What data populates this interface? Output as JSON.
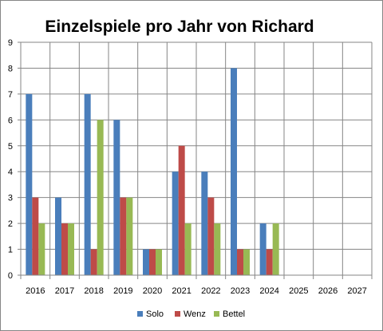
{
  "chart_data": {
    "type": "bar",
    "title": "Einzelspiele pro Jahr von Richard",
    "categories": [
      "2016",
      "2017",
      "2018",
      "2019",
      "2020",
      "2021",
      "2022",
      "2023",
      "2024",
      "2025",
      "2026",
      "2027"
    ],
    "series": [
      {
        "name": "Solo",
        "color": "#4a7ebb",
        "values": [
          7,
          3,
          7,
          6,
          1,
          4,
          4,
          8,
          2,
          null,
          null,
          null
        ]
      },
      {
        "name": "Wenz",
        "color": "#be4b48",
        "values": [
          3,
          2,
          1,
          3,
          1,
          5,
          3,
          1,
          1,
          null,
          null,
          null
        ]
      },
      {
        "name": "Bettel",
        "color": "#98b954",
        "values": [
          2,
          2,
          6,
          3,
          1,
          2,
          2,
          1,
          2,
          null,
          null,
          null
        ]
      }
    ],
    "ylim": [
      0,
      9
    ],
    "yticks": [
      "0",
      "1",
      "2",
      "3",
      "4",
      "5",
      "6",
      "7",
      "8",
      "9"
    ],
    "grid": true,
    "legend_position": "bottom"
  }
}
